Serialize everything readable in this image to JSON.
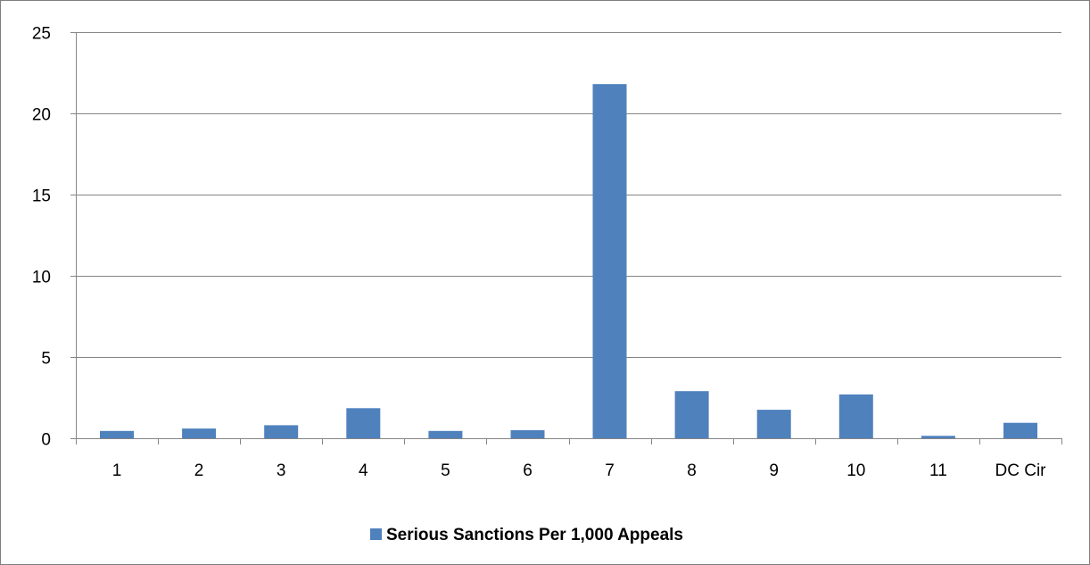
{
  "chart_data": {
    "type": "bar",
    "title": "",
    "xlabel": "",
    "ylabel": "",
    "categories": [
      "1",
      "2",
      "3",
      "4",
      "5",
      "6",
      "7",
      "8",
      "9",
      "10",
      "11",
      "DC Cir"
    ],
    "series": [
      {
        "name": "Serious Sanctions Per 1,000 Appeals",
        "values": [
          0.45,
          0.6,
          0.8,
          1.85,
          0.45,
          0.5,
          21.8,
          2.9,
          1.75,
          2.7,
          0.15,
          0.95
        ],
        "color": "#4f81bd"
      }
    ],
    "ylim": [
      0,
      25
    ],
    "yticks": [
      0,
      5,
      10,
      15,
      20,
      25
    ],
    "grid": true,
    "legend_position": "bottom"
  }
}
